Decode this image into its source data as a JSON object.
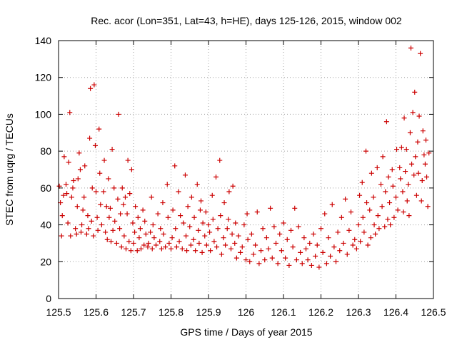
{
  "chart_data": {
    "type": "scatter",
    "title": "Rec. acor (Lon=351, Lat=43, h=HE), days 125-126, 2015, window 002",
    "xlabel": "GPS time / Days of year 2015",
    "ylabel": "STEC from uqrg / TECUs",
    "xlim": [
      125.5,
      126.5
    ],
    "ylim": [
      0,
      140
    ],
    "xticks": [
      125.5,
      125.6,
      125.7,
      125.8,
      125.9,
      126,
      126.1,
      126.2,
      126.3,
      126.4,
      126.5
    ],
    "xtick_labels": [
      "125.5",
      "125.6",
      "125.7",
      "125.8",
      "125.9",
      "126",
      "126.1",
      "126.2",
      "126.3",
      "126.4",
      "126.5"
    ],
    "yticks": [
      0,
      20,
      40,
      60,
      80,
      100,
      120,
      140
    ],
    "ytick_labels": [
      "0",
      "20",
      "40",
      "60",
      "80",
      "100",
      "120",
      "140"
    ],
    "grid": true,
    "marker": "+",
    "color": "#cc0000",
    "points": [
      [
        125.502,
        61
      ],
      [
        125.505,
        52
      ],
      [
        125.508,
        34
      ],
      [
        125.51,
        45
      ],
      [
        125.513,
        56
      ],
      [
        125.515,
        77
      ],
      [
        125.52,
        62
      ],
      [
        125.522,
        57
      ],
      [
        125.525,
        41
      ],
      [
        125.527,
        74
      ],
      [
        125.53,
        101
      ],
      [
        125.532,
        34
      ],
      [
        125.535,
        55
      ],
      [
        125.538,
        60
      ],
      [
        125.54,
        64
      ],
      [
        125.545,
        38
      ],
      [
        125.548,
        35
      ],
      [
        125.55,
        50
      ],
      [
        125.552,
        65
      ],
      [
        125.555,
        79
      ],
      [
        125.558,
        70
      ],
      [
        125.56,
        36
      ],
      [
        125.562,
        40
      ],
      [
        125.565,
        48
      ],
      [
        125.568,
        55
      ],
      [
        125.57,
        72
      ],
      [
        125.575,
        35
      ],
      [
        125.578,
        45
      ],
      [
        125.58,
        38
      ],
      [
        125.583,
        87
      ],
      [
        125.585,
        114
      ],
      [
        125.588,
        42
      ],
      [
        125.59,
        60
      ],
      [
        125.593,
        34
      ],
      [
        125.595,
        116
      ],
      [
        125.598,
        83
      ],
      [
        125.6,
        58
      ],
      [
        125.603,
        44
      ],
      [
        125.605,
        37
      ],
      [
        125.608,
        92
      ],
      [
        125.61,
        68
      ],
      [
        125.612,
        51
      ],
      [
        125.615,
        40
      ],
      [
        125.62,
        58
      ],
      [
        125.622,
        75
      ],
      [
        125.625,
        36
      ],
      [
        125.628,
        50
      ],
      [
        125.63,
        32
      ],
      [
        125.633,
        65
      ],
      [
        125.635,
        44
      ],
      [
        125.638,
        49
      ],
      [
        125.64,
        31
      ],
      [
        125.643,
        81
      ],
      [
        125.645,
        37
      ],
      [
        125.648,
        60
      ],
      [
        125.65,
        42
      ],
      [
        125.655,
        30
      ],
      [
        125.658,
        54
      ],
      [
        125.66,
        100
      ],
      [
        125.663,
        38
      ],
      [
        125.665,
        46
      ],
      [
        125.668,
        28
      ],
      [
        125.67,
        60
      ],
      [
        125.673,
        51
      ],
      [
        125.675,
        34
      ],
      [
        125.678,
        55
      ],
      [
        125.68,
        27
      ],
      [
        125.683,
        46
      ],
      [
        125.685,
        75
      ],
      [
        125.688,
        31
      ],
      [
        125.69,
        57
      ],
      [
        125.693,
        26
      ],
      [
        125.695,
        70
      ],
      [
        125.698,
        41
      ],
      [
        125.7,
        30
      ],
      [
        125.703,
        36
      ],
      [
        125.705,
        50
      ],
      [
        125.71,
        26
      ],
      [
        125.712,
        44
      ],
      [
        125.715,
        33
      ],
      [
        125.718,
        38
      ],
      [
        125.72,
        27
      ],
      [
        125.725,
        48
      ],
      [
        125.728,
        29
      ],
      [
        125.73,
        42
      ],
      [
        125.733,
        35
      ],
      [
        125.738,
        28
      ],
      [
        125.74,
        30
      ],
      [
        125.745,
        36
      ],
      [
        125.748,
        55
      ],
      [
        125.75,
        27
      ],
      [
        125.752,
        40
      ],
      [
        125.755,
        33
      ],
      [
        125.76,
        29
      ],
      [
        125.765,
        46
      ],
      [
        125.77,
        31
      ],
      [
        125.772,
        38
      ],
      [
        125.775,
        27
      ],
      [
        125.778,
        52
      ],
      [
        125.78,
        35
      ],
      [
        125.785,
        28
      ],
      [
        125.79,
        62
      ],
      [
        125.792,
        44
      ],
      [
        125.795,
        30
      ],
      [
        125.8,
        27
      ],
      [
        125.803,
        33
      ],
      [
        125.805,
        48
      ],
      [
        125.81,
        72
      ],
      [
        125.812,
        38
      ],
      [
        125.815,
        28
      ],
      [
        125.82,
        58
      ],
      [
        125.822,
        31
      ],
      [
        125.825,
        45
      ],
      [
        125.83,
        27
      ],
      [
        125.833,
        41
      ],
      [
        125.838,
        67
      ],
      [
        125.84,
        34
      ],
      [
        125.842,
        26
      ],
      [
        125.845,
        50
      ],
      [
        125.85,
        39
      ],
      [
        125.853,
        29
      ],
      [
        125.855,
        55
      ],
      [
        125.86,
        32
      ],
      [
        125.862,
        44
      ],
      [
        125.865,
        26
      ],
      [
        125.87,
        62
      ],
      [
        125.873,
        37
      ],
      [
        125.875,
        30
      ],
      [
        125.878,
        48
      ],
      [
        125.88,
        53
      ],
      [
        125.883,
        25
      ],
      [
        125.885,
        41
      ],
      [
        125.89,
        34
      ],
      [
        125.893,
        47
      ],
      [
        125.895,
        29
      ],
      [
        125.9,
        40
      ],
      [
        125.903,
        36
      ],
      [
        125.905,
        26
      ],
      [
        125.91,
        56
      ],
      [
        125.912,
        43
      ],
      [
        125.915,
        31
      ],
      [
        125.92,
        66
      ],
      [
        125.922,
        28
      ],
      [
        125.925,
        38
      ],
      [
        125.93,
        75
      ],
      [
        125.932,
        45
      ],
      [
        125.935,
        24
      ],
      [
        125.94,
        33
      ],
      [
        125.942,
        52
      ],
      [
        125.945,
        29
      ],
      [
        125.95,
        38
      ],
      [
        125.953,
        43
      ],
      [
        125.955,
        58
      ],
      [
        125.96,
        27
      ],
      [
        125.963,
        35
      ],
      [
        125.965,
        61
      ],
      [
        125.97,
        30
      ],
      [
        125.972,
        41
      ],
      [
        125.975,
        22
      ],
      [
        125.98,
        34
      ],
      [
        125.985,
        25
      ],
      [
        125.99,
        28
      ],
      [
        125.995,
        40
      ],
      [
        126.0,
        21
      ],
      [
        126.003,
        46
      ],
      [
        126.005,
        32
      ],
      [
        126.01,
        20
      ],
      [
        126.015,
        35
      ],
      [
        126.02,
        24
      ],
      [
        126.025,
        29
      ],
      [
        126.03,
        47
      ],
      [
        126.035,
        19
      ],
      [
        126.04,
        26
      ],
      [
        126.045,
        38
      ],
      [
        126.05,
        21
      ],
      [
        126.055,
        33
      ],
      [
        126.06,
        27
      ],
      [
        126.065,
        49
      ],
      [
        126.07,
        22
      ],
      [
        126.075,
        39
      ],
      [
        126.08,
        30
      ],
      [
        126.085,
        19
      ],
      [
        126.09,
        35
      ],
      [
        126.095,
        26
      ],
      [
        126.1,
        41
      ],
      [
        126.105,
        22
      ],
      [
        126.11,
        32
      ],
      [
        126.115,
        18
      ],
      [
        126.12,
        37
      ],
      [
        126.125,
        28
      ],
      [
        126.13,
        49
      ],
      [
        126.135,
        21
      ],
      [
        126.14,
        39
      ],
      [
        126.145,
        25
      ],
      [
        126.15,
        19
      ],
      [
        126.155,
        33
      ],
      [
        126.16,
        27
      ],
      [
        126.165,
        21
      ],
      [
        126.17,
        30
      ],
      [
        126.175,
        18
      ],
      [
        126.18,
        35
      ],
      [
        126.185,
        23
      ],
      [
        126.19,
        29
      ],
      [
        126.195,
        17
      ],
      [
        126.2,
        38
      ],
      [
        126.205,
        25
      ],
      [
        126.21,
        46
      ],
      [
        126.215,
        19
      ],
      [
        126.22,
        33
      ],
      [
        126.225,
        23
      ],
      [
        126.23,
        51
      ],
      [
        126.235,
        28
      ],
      [
        126.24,
        20
      ],
      [
        126.245,
        36
      ],
      [
        126.25,
        26
      ],
      [
        126.255,
        44
      ],
      [
        126.26,
        30
      ],
      [
        126.265,
        54
      ],
      [
        126.27,
        24
      ],
      [
        126.275,
        37
      ],
      [
        126.28,
        47
      ],
      [
        126.285,
        29
      ],
      [
        126.29,
        32
      ],
      [
        126.295,
        27
      ],
      [
        126.3,
        40
      ],
      [
        126.303,
        56
      ],
      [
        126.305,
        31
      ],
      [
        126.31,
        63
      ],
      [
        126.312,
        44
      ],
      [
        126.315,
        36
      ],
      [
        126.32,
        80
      ],
      [
        126.322,
        52
      ],
      [
        126.325,
        29
      ],
      [
        126.33,
        48
      ],
      [
        126.333,
        33
      ],
      [
        126.335,
        68
      ],
      [
        126.34,
        55
      ],
      [
        126.342,
        40
      ],
      [
        126.345,
        35
      ],
      [
        126.35,
        71
      ],
      [
        126.352,
        45
      ],
      [
        126.355,
        38
      ],
      [
        126.36,
        62
      ],
      [
        126.363,
        50
      ],
      [
        126.365,
        77
      ],
      [
        126.37,
        39
      ],
      [
        126.372,
        58
      ],
      [
        126.375,
        96
      ],
      [
        126.378,
        43
      ],
      [
        126.38,
        66
      ],
      [
        126.383,
        52
      ],
      [
        126.385,
        40
      ],
      [
        126.39,
        70
      ],
      [
        126.392,
        61
      ],
      [
        126.395,
        44
      ],
      [
        126.4,
        55
      ],
      [
        126.402,
        81
      ],
      [
        126.405,
        48
      ],
      [
        126.41,
        71
      ],
      [
        126.412,
        65
      ],
      [
        126.415,
        82
      ],
      [
        126.418,
        58
      ],
      [
        126.42,
        47
      ],
      [
        126.422,
        98
      ],
      [
        126.425,
        69
      ],
      [
        126.428,
        81
      ],
      [
        126.43,
        53
      ],
      [
        126.433,
        62
      ],
      [
        126.435,
        45
      ],
      [
        126.438,
        90
      ],
      [
        126.44,
        136
      ],
      [
        126.442,
        73
      ],
      [
        126.445,
        101
      ],
      [
        126.448,
        67
      ],
      [
        126.45,
        112
      ],
      [
        126.452,
        77
      ],
      [
        126.455,
        56
      ],
      [
        126.458,
        85
      ],
      [
        126.46,
        68
      ],
      [
        126.462,
        99
      ],
      [
        126.465,
        133
      ],
      [
        126.468,
        53
      ],
      [
        126.47,
        64
      ],
      [
        126.472,
        91
      ],
      [
        126.475,
        78
      ],
      [
        126.478,
        73
      ],
      [
        126.48,
        86
      ],
      [
        126.482,
        66
      ],
      [
        126.485,
        50
      ],
      [
        126.488,
        79
      ]
    ]
  }
}
